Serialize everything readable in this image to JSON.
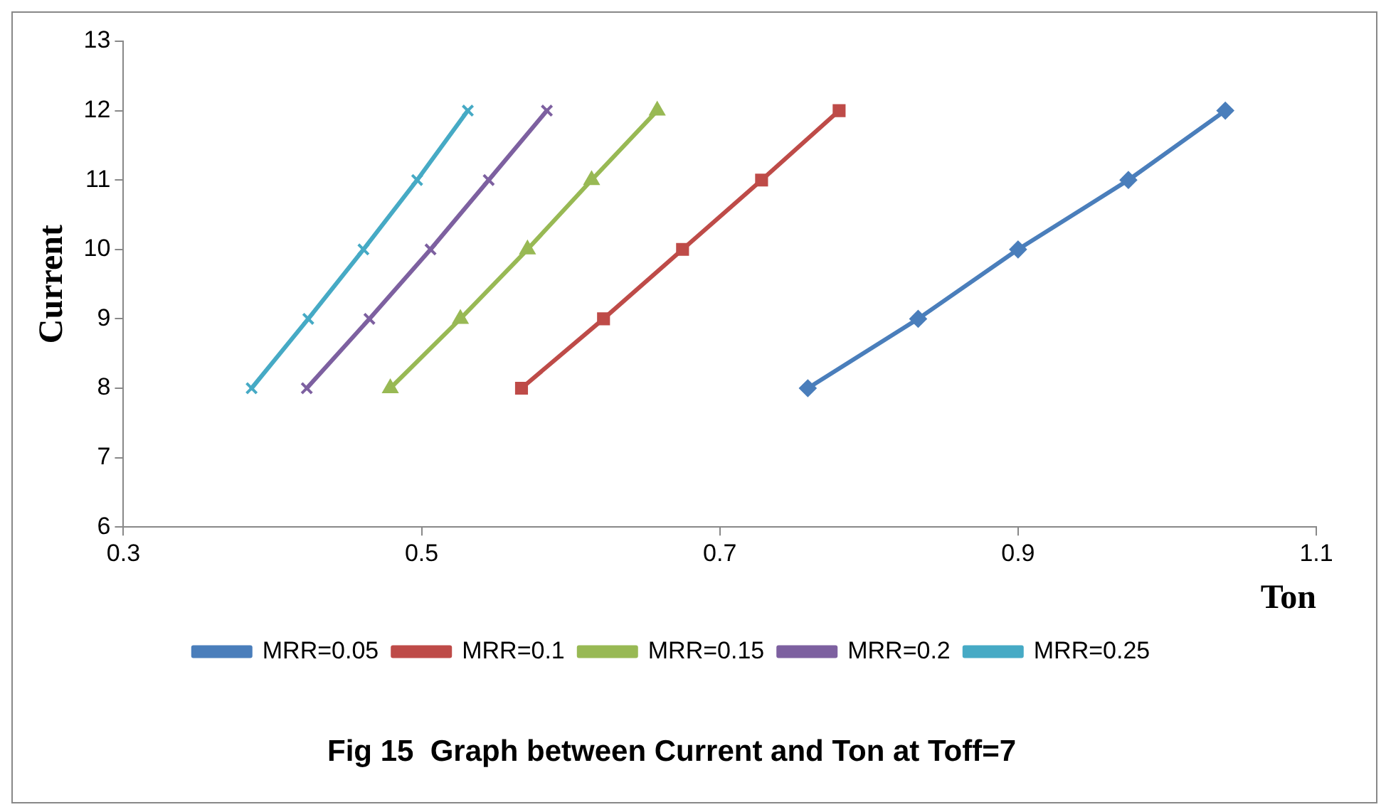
{
  "chart_data": {
    "type": "line",
    "title": "Fig 15  Graph between Current and Ton at Toff=7",
    "xlabel": "Ton",
    "ylabel": "Current",
    "xlim": [
      0.3,
      1.1
    ],
    "xticks": [
      0.3,
      0.5,
      0.7,
      0.9,
      1.1
    ],
    "ylim": [
      6,
      13
    ],
    "yticks": [
      6,
      7,
      8,
      9,
      10,
      11,
      12,
      13
    ],
    "grid": false,
    "legend": "bottom",
    "series": [
      {
        "name": "MRR=0.05",
        "color": "#4a7ebb",
        "marker": "diamond",
        "x": [
          0.759,
          0.833,
          0.9,
          0.974,
          1.039
        ],
        "values": [
          8,
          9,
          10,
          11,
          12
        ]
      },
      {
        "name": "MRR=0.1",
        "color": "#be4b48",
        "marker": "square",
        "x": [
          0.567,
          0.622,
          0.675,
          0.728,
          0.78
        ],
        "values": [
          8,
          9,
          10,
          11,
          12
        ]
      },
      {
        "name": "MRR=0.15",
        "color": "#98b954",
        "marker": "triangle",
        "x": [
          0.479,
          0.526,
          0.571,
          0.614,
          0.658
        ],
        "values": [
          8,
          9,
          10,
          11,
          12
        ]
      },
      {
        "name": "MRR=0.2",
        "color": "#7d60a0",
        "marker": "cross",
        "x": [
          0.423,
          0.465,
          0.506,
          0.545,
          0.584
        ],
        "values": [
          8,
          9,
          10,
          11,
          12
        ]
      },
      {
        "name": "MRR=0.25",
        "color": "#46aac5",
        "marker": "cross",
        "x": [
          0.386,
          0.424,
          0.461,
          0.497,
          0.531
        ],
        "values": [
          8,
          9,
          10,
          11,
          12
        ]
      }
    ]
  }
}
